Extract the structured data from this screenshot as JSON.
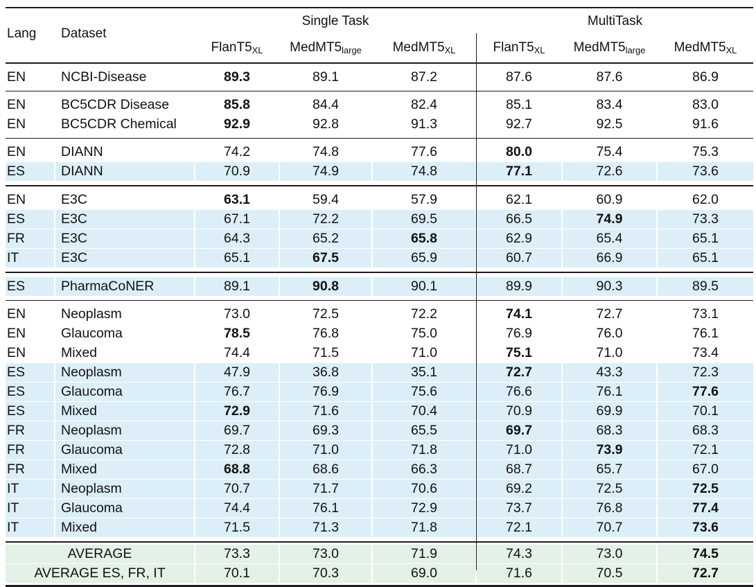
{
  "table": {
    "head": {
      "lang": "Lang",
      "dataset": "Dataset",
      "groups": [
        {
          "label": "Single Task"
        },
        {
          "label": "MultiTask"
        }
      ],
      "models": [
        {
          "base": "FlanT5",
          "sub": "XL"
        },
        {
          "base": "MedMT5",
          "sub": "large"
        },
        {
          "base": "MedMT5",
          "sub": "XL"
        },
        {
          "base": "FlanT5",
          "sub": "XL"
        },
        {
          "base": "MedMT5",
          "sub": "large"
        },
        {
          "base": "MedMT5",
          "sub": "XL"
        }
      ]
    },
    "colors": {
      "highlight_blue": "#dceff8",
      "average_green": "#e3f1e6",
      "rule_black": "#1c1c1c"
    },
    "blocks": [
      {
        "rows": [
          {
            "lang": "EN",
            "dataset": "NCBI-Disease",
            "values": [
              "89.3",
              "89.1",
              "87.2",
              "87.6",
              "87.6",
              "86.9"
            ],
            "bold": [
              0
            ],
            "highlight": false
          }
        ]
      },
      {
        "rows": [
          {
            "lang": "EN",
            "dataset": "BC5CDR Disease",
            "values": [
              "85.8",
              "84.4",
              "82.4",
              "85.1",
              "83.4",
              "83.0"
            ],
            "bold": [
              0
            ],
            "highlight": false
          },
          {
            "lang": "EN",
            "dataset": "BC5CDR Chemical",
            "values": [
              "92.9",
              "92.8",
              "91.3",
              "92.7",
              "92.5",
              "91.6"
            ],
            "bold": [
              0
            ],
            "highlight": false
          }
        ]
      },
      {
        "rows": [
          {
            "lang": "EN",
            "dataset": "DIANN",
            "values": [
              "74.2",
              "74.8",
              "77.6",
              "80.0",
              "75.4",
              "75.3"
            ],
            "bold": [
              3
            ],
            "highlight": false
          },
          {
            "lang": "ES",
            "dataset": "DIANN",
            "values": [
              "70.9",
              "74.9",
              "74.8",
              "77.1",
              "72.6",
              "73.6"
            ],
            "bold": [
              3
            ],
            "highlight": true
          }
        ]
      },
      {
        "rows": [
          {
            "lang": "EN",
            "dataset": "E3C",
            "values": [
              "63.1",
              "59.4",
              "57.9",
              "62.1",
              "60.9",
              "62.0"
            ],
            "bold": [
              0
            ],
            "highlight": false
          },
          {
            "lang": "ES",
            "dataset": "E3C",
            "values": [
              "67.1",
              "72.2",
              "69.5",
              "66.5",
              "74.9",
              "73.3"
            ],
            "bold": [
              4
            ],
            "highlight": true
          },
          {
            "lang": "FR",
            "dataset": "E3C",
            "values": [
              "64.3",
              "65.2",
              "65.8",
              "62.9",
              "65.4",
              "65.1"
            ],
            "bold": [
              2
            ],
            "highlight": true
          },
          {
            "lang": "IT",
            "dataset": "E3C",
            "values": [
              "65.1",
              "67.5",
              "65.9",
              "60.7",
              "66.9",
              "65.1"
            ],
            "bold": [
              1
            ],
            "highlight": true
          }
        ]
      },
      {
        "rows": [
          {
            "lang": "ES",
            "dataset": "PharmaCoNER",
            "values": [
              "89.1",
              "90.8",
              "90.1",
              "89.9",
              "90.3",
              "89.5"
            ],
            "bold": [
              1
            ],
            "highlight": true
          }
        ]
      },
      {
        "rows": [
          {
            "lang": "EN",
            "dataset": "Neoplasm",
            "values": [
              "73.0",
              "72.5",
              "72.2",
              "74.1",
              "72.7",
              "73.1"
            ],
            "bold": [
              3
            ],
            "highlight": false
          },
          {
            "lang": "EN",
            "dataset": "Glaucoma",
            "values": [
              "78.5",
              "76.8",
              "75.0",
              "76.9",
              "76.0",
              "76.1"
            ],
            "bold": [
              0
            ],
            "highlight": false
          },
          {
            "lang": "EN",
            "dataset": "Mixed",
            "values": [
              "74.4",
              "71.5",
              "71.0",
              "75.1",
              "71.0",
              "73.4"
            ],
            "bold": [
              3
            ],
            "highlight": false
          },
          {
            "lang": "ES",
            "dataset": "Neoplasm",
            "values": [
              "47.9",
              "36.8",
              "35.1",
              "72.7",
              "43.3",
              "72.3"
            ],
            "bold": [
              3
            ],
            "highlight": true
          },
          {
            "lang": "ES",
            "dataset": "Glaucoma",
            "values": [
              "76.7",
              "76.9",
              "75.6",
              "76.6",
              "76.1",
              "77.6"
            ],
            "bold": [
              5
            ],
            "highlight": true
          },
          {
            "lang": "ES",
            "dataset": "Mixed",
            "values": [
              "72.9",
              "71.6",
              "70.4",
              "70.9",
              "69.9",
              "70.1"
            ],
            "bold": [
              0
            ],
            "highlight": true
          },
          {
            "lang": "FR",
            "dataset": "Neoplasm",
            "values": [
              "69.7",
              "69.3",
              "65.5",
              "69.7",
              "68.3",
              "68.3"
            ],
            "bold": [
              3
            ],
            "highlight": true
          },
          {
            "lang": "FR",
            "dataset": "Glaucoma",
            "values": [
              "72.8",
              "71.0",
              "71.8",
              "71.0",
              "73.9",
              "72.1"
            ],
            "bold": [
              4
            ],
            "highlight": true
          },
          {
            "lang": "FR",
            "dataset": "Mixed",
            "values": [
              "68.8",
              "68.6",
              "66.3",
              "68.7",
              "65.7",
              "67.0"
            ],
            "bold": [
              0
            ],
            "highlight": true
          },
          {
            "lang": "IT",
            "dataset": "Neoplasm",
            "values": [
              "70.7",
              "71.7",
              "70.6",
              "69.2",
              "72.5",
              "72.5"
            ],
            "bold": [
              5
            ],
            "highlight": true
          },
          {
            "lang": "IT",
            "dataset": "Glaucoma",
            "values": [
              "74.4",
              "76.1",
              "72.9",
              "73.7",
              "76.8",
              "77.4"
            ],
            "bold": [
              5
            ],
            "highlight": true
          },
          {
            "lang": "IT",
            "dataset": "Mixed",
            "values": [
              "71.5",
              "71.3",
              "71.8",
              "72.1",
              "70.7",
              "73.6"
            ],
            "bold": [
              5
            ],
            "highlight": true
          }
        ]
      }
    ],
    "footer": {
      "rows": [
        {
          "label": "AVERAGE",
          "values": [
            "73.3",
            "73.0",
            "71.9",
            "74.3",
            "73.0",
            "74.5"
          ],
          "bold": [
            5
          ]
        },
        {
          "label": "AVERAGE ES, FR, IT",
          "values": [
            "70.1",
            "70.3",
            "69.0",
            "71.6",
            "70.5",
            "72.7"
          ],
          "bold": [
            5
          ]
        }
      ]
    }
  }
}
